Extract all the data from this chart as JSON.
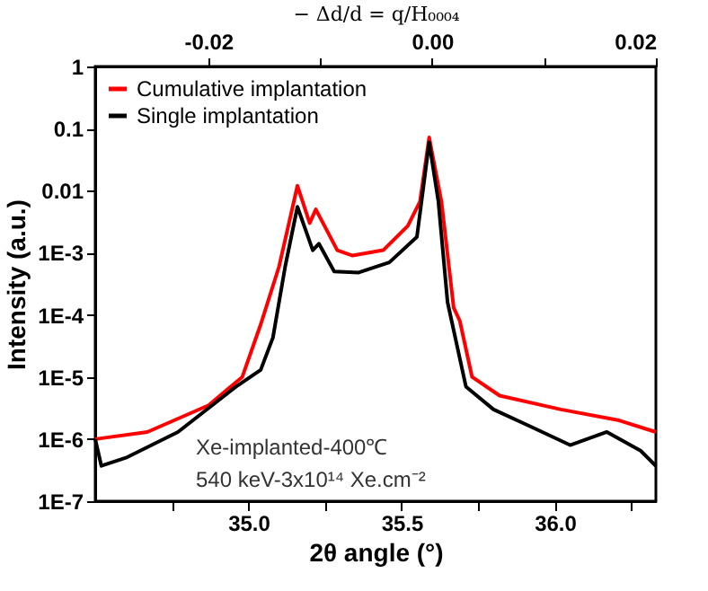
{
  "chart_data": {
    "type": "line",
    "xlabel": "2θ angle (°)",
    "ylabel": "Intensity (a.u.)",
    "x2label": "− Δd/d = q/H₀₀₀₄",
    "xlim": [
      34.5,
      36.33
    ],
    "xticks": [
      {
        "value": 34.75,
        "label": null
      },
      {
        "value": 35.0,
        "label": "35.0"
      },
      {
        "value": 35.25,
        "label": null
      },
      {
        "value": 35.5,
        "label": "35.5"
      },
      {
        "value": 35.75,
        "label": null
      },
      {
        "value": 36.0,
        "label": "36.0"
      },
      {
        "value": 36.25,
        "label": null
      }
    ],
    "x2lim": [
      -0.0301,
      0.02
    ],
    "x2ticks": [
      {
        "value": -0.02,
        "label": "-0.02"
      },
      {
        "value": -0.01,
        "label": null
      },
      {
        "value": 0,
        "label": "0.00"
      },
      {
        "value": 0.01,
        "label": null
      },
      {
        "value": 0.02,
        "label": "0.02"
      }
    ],
    "ylim": [
      1e-07,
      1
    ],
    "yticks": [
      {
        "value": 1e-07,
        "label": "1E-7"
      },
      {
        "value": 1e-06,
        "label": "1E-6"
      },
      {
        "value": 1e-05,
        "label": "1E-5"
      },
      {
        "value": 0.0001,
        "label": "1E-4"
      },
      {
        "value": 0.001,
        "label": "1E-3"
      },
      0.01,
      0.1,
      1
    ],
    "log": "y",
    "grid": false,
    "legend": "top left",
    "marker": "none",
    "line_style": "solid",
    "annotations": [
      "Xe-implanted-400℃",
      "540 keV-3x10¹⁴ Xe.cm⁻²"
    ],
    "series": [
      {
        "name": "Cumulative implantation",
        "color": "#ff0000",
        "x": [
          34.5,
          34.67,
          34.87,
          34.98,
          35.04,
          35.1,
          35.16,
          35.2,
          35.22,
          35.29,
          35.34,
          35.44,
          35.52,
          35.56,
          35.59,
          35.63,
          35.67,
          35.69,
          35.73,
          35.82,
          36.02,
          36.21,
          36.33
        ],
        "values": [
          1e-06,
          1.3e-06,
          3.5e-06,
          1e-05,
          7e-05,
          0.0006,
          0.012,
          0.003,
          0.005,
          0.0011,
          0.0009,
          0.0011,
          0.0027,
          0.0067,
          0.072,
          0.0067,
          0.00013,
          8e-05,
          1e-05,
          5e-06,
          3e-06,
          2e-06,
          1.3e-06
        ]
      },
      {
        "name": "Single implantation",
        "color": "#000000",
        "x": [
          34.5,
          34.52,
          34.6,
          34.77,
          34.96,
          35.04,
          35.08,
          35.12,
          35.16,
          35.21,
          35.23,
          35.28,
          35.36,
          35.46,
          35.55,
          35.59,
          35.62,
          35.65,
          35.71,
          35.8,
          35.92,
          36.05,
          36.17,
          36.28,
          36.33
        ],
        "values": [
          1e-06,
          3.7e-07,
          5e-07,
          1.3e-06,
          7e-06,
          1.3e-05,
          4.3e-05,
          0.0006,
          0.0055,
          0.0011,
          0.0014,
          0.0005,
          0.00048,
          0.0007,
          0.0018,
          0.06,
          0.0067,
          0.00016,
          7e-06,
          3e-06,
          1.6e-06,
          8e-07,
          1.3e-06,
          6.5e-07,
          3.7e-07
        ]
      }
    ]
  }
}
